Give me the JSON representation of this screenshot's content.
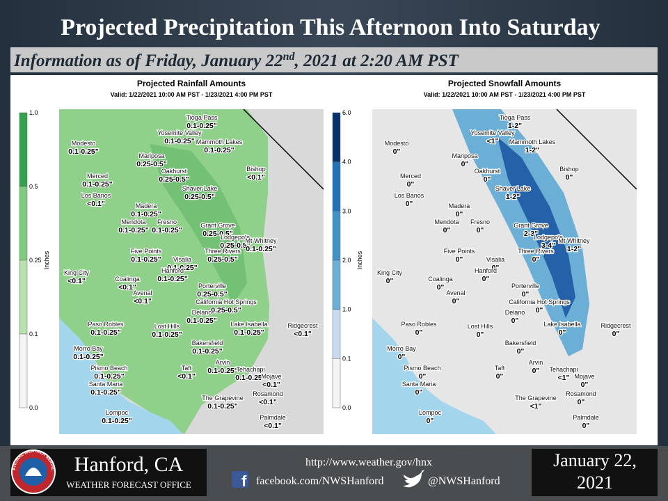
{
  "header": {
    "title": "Projected Precipitation This Afternoon Into Saturday",
    "subtitle": {
      "before": "Information as of Friday, January 22",
      "sup": "nd",
      "after": ", 2021 at 2:20 AM PST"
    }
  },
  "maps": [
    {
      "title": "Projected Rainfall Amounts",
      "valid": "Valid: 1/22/2021 10:00 AM PST - 1/23/2021 4:00 PM PST",
      "legend": {
        "unit": "Inches",
        "ticks": [
          "1.0",
          "0.5",
          "0.25",
          "0.1",
          "0.0"
        ]
      },
      "places": [
        [
          "Tioga Pass",
          "0.1-0.25\""
        ],
        [
          "Yosemite Valley",
          "0.1-0.25\""
        ],
        [
          "Mammoth Lakes",
          "0.1-0.25\""
        ],
        [
          "Modesto",
          "0.1-0.25\""
        ],
        [
          "Mariposa",
          "0.25-0.5\""
        ],
        [
          "Merced",
          "0.1-0.25\""
        ],
        [
          "Oakhurst",
          "0.25-0.5\""
        ],
        [
          "Bishop",
          "<0.1\""
        ],
        [
          "Shaver Lake",
          "0.25-0.5\""
        ],
        [
          "Los Banos",
          "<0.1\""
        ],
        [
          "Madera",
          "0.1-0.25\""
        ],
        [
          "Mendota",
          "0.1-0.25\""
        ],
        [
          "Fresno",
          "0.1-0.25\""
        ],
        [
          "Grant Grove",
          "0.25-0.5\""
        ],
        [
          "Lodgepole",
          "0.25-0.5\""
        ],
        [
          "Mt Whitney",
          "0.1-0.25\""
        ],
        [
          "Five Points",
          "0.1-0.25\""
        ],
        [
          "Three Rivers",
          "0.25-0.5\""
        ],
        [
          "Visalia",
          "0.1-0.25\""
        ],
        [
          "Hanford",
          "0.1-0.25\""
        ],
        [
          "King City",
          "<0.1\""
        ],
        [
          "Coalinga",
          "<0.1\""
        ],
        [
          "Avenal",
          "<0.1\""
        ],
        [
          "Porterville",
          "0.25-0.5\""
        ],
        [
          "California Hot Springs",
          "0.25-0.5\""
        ],
        [
          "Delano",
          "0.1-0.25\""
        ],
        [
          "Paso Robles",
          "0.1-0.25\""
        ],
        [
          "Lost Hills",
          "0.1-0.25\""
        ],
        [
          "Lake Isabella",
          "0.1-0.25\""
        ],
        [
          "Ridgecrest",
          "<0.1\""
        ],
        [
          "Bakersfield",
          "0.1-0.25\""
        ],
        [
          "Morro Bay",
          "0.1-0.25\""
        ],
        [
          "Pismo Beach",
          "0.1-0.25\""
        ],
        [
          "Taft",
          "<0.1\""
        ],
        [
          "Arvin",
          "0.1-0.25\""
        ],
        [
          "Tehachapi",
          "0.1-0.25\""
        ],
        [
          "Mojave",
          "<0.1\""
        ],
        [
          "Santa Maria",
          "0.1-0.25\""
        ],
        [
          "Rosamond",
          "<0.1\""
        ],
        [
          "The Grapevine",
          "0.1-0.25\""
        ],
        [
          "Lompoc",
          "0.1-0.25\""
        ],
        [
          "Palmdale",
          "<0.1\""
        ]
      ]
    },
    {
      "title": "Projected Snowfall Amounts",
      "valid": "Valid: 1/22/2021 10:00 AM PST - 1/23/2021 4:00 PM PST",
      "legend": {
        "unit": "Inches",
        "ticks": [
          "6.0",
          "4.0",
          "3.0",
          "2.0",
          "1.0",
          "0.1",
          "0.0"
        ]
      },
      "places": [
        [
          "Tioga Pass",
          "1-2\""
        ],
        [
          "Yosemite Valley",
          "<1\""
        ],
        [
          "Mammoth Lakes",
          "1-2\""
        ],
        [
          "Modesto",
          "0\""
        ],
        [
          "Mariposa",
          "0\""
        ],
        [
          "Merced",
          "0\""
        ],
        [
          "Oakhurst",
          "0\""
        ],
        [
          "Bishop",
          "0\""
        ],
        [
          "Shaver Lake",
          "1-2\""
        ],
        [
          "Los Banos",
          "0\""
        ],
        [
          "Madera",
          "0\""
        ],
        [
          "Mendota",
          "0\""
        ],
        [
          "Fresno",
          "0\""
        ],
        [
          "Grant Grove",
          "2-3\""
        ],
        [
          "Lodgepole",
          "3-4\""
        ],
        [
          "Mt Whitney",
          "1-2\""
        ],
        [
          "Five Points",
          "0\""
        ],
        [
          "Three Rivers",
          "0\""
        ],
        [
          "Visalia",
          "0\""
        ],
        [
          "Hanford",
          "0\""
        ],
        [
          "King City",
          "0\""
        ],
        [
          "Coalinga",
          "0\""
        ],
        [
          "Avenal",
          "0\""
        ],
        [
          "Porterville",
          "0\""
        ],
        [
          "California Hot Springs",
          "0\""
        ],
        [
          "Delano",
          "0\""
        ],
        [
          "Paso Robles",
          "0\""
        ],
        [
          "Lost Hills",
          "0\""
        ],
        [
          "Lake Isabella",
          "0\""
        ],
        [
          "Ridgecrest",
          "0\""
        ],
        [
          "Bakersfield",
          "0\""
        ],
        [
          "Morro Bay",
          "0\""
        ],
        [
          "Pismo Beach",
          "0\""
        ],
        [
          "Taft",
          "0\""
        ],
        [
          "Arvin",
          "0\""
        ],
        [
          "Tehachapi",
          "<1\""
        ],
        [
          "Mojave",
          "0\""
        ],
        [
          "Santa Maria",
          "0\""
        ],
        [
          "Rosamond",
          "0\""
        ],
        [
          "The Grapevine",
          "<1\""
        ],
        [
          "Lompoc",
          "0\""
        ],
        [
          "Palmdale",
          "0\""
        ]
      ]
    }
  ],
  "footer": {
    "logo_text": "NATIONAL WEATHER SERVICE",
    "office": "Hanford, CA",
    "office_type": "WEATHER FORECAST OFFICE",
    "url": "http://www.weather.gov/hnx",
    "facebook": "facebook.com/NWSHanford",
    "twitter": "@NWSHanford",
    "date_line1": "January 22,",
    "date_line2": "2021"
  }
}
